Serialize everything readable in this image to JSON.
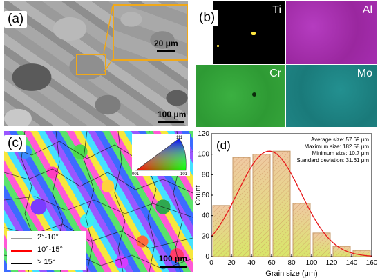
{
  "panels": {
    "a": {
      "label": "(a)",
      "inset_scale": "20 μm",
      "main_scale": "100 μm",
      "highlight_color": "#f0a818"
    },
    "b": {
      "label": "(b)",
      "maps": [
        {
          "element": "Ti",
          "color": "#000000",
          "dot_color": "#ffe640"
        },
        {
          "element": "Al",
          "color": "#a62bb0"
        },
        {
          "element": "Cr",
          "color": "#33a437"
        },
        {
          "element": "Mo",
          "color": "#1e8585"
        }
      ]
    },
    "c": {
      "label": "(c)",
      "legend": [
        {
          "text": "2°-10°",
          "color": "#9a9a9a"
        },
        {
          "text": "10°-15°",
          "color": "#ff0000"
        },
        {
          "text": "> 15°",
          "color": "#000000"
        }
      ],
      "ipf_labels": {
        "top": "111",
        "left": "001",
        "right": "101"
      },
      "scale": "100 μm"
    },
    "d": {
      "label": "(d)",
      "stats": [
        "Average size: 57.69 μm",
        "Maximum size: 182.58 μm",
        "Minimum size: 10.7 μm",
        "Standard deviation: 31.61 μm"
      ]
    }
  },
  "chart_data": {
    "type": "bar",
    "xlabel": "Grain size (μm)",
    "ylabel": "Count",
    "xlim": [
      0,
      160
    ],
    "ylim": [
      0,
      120
    ],
    "xticks": [
      0,
      20,
      40,
      60,
      80,
      100,
      120,
      140,
      160
    ],
    "yticks": [
      0,
      20,
      40,
      60,
      80,
      100,
      120
    ],
    "bins": [
      {
        "start": 0,
        "end": 20,
        "count": 50
      },
      {
        "start": 20,
        "end": 40,
        "count": 97
      },
      {
        "start": 40,
        "end": 60,
        "count": 100
      },
      {
        "start": 60,
        "end": 80,
        "count": 103
      },
      {
        "start": 80,
        "end": 100,
        "count": 52
      },
      {
        "start": 100,
        "end": 120,
        "count": 23
      },
      {
        "start": 120,
        "end": 140,
        "count": 10
      },
      {
        "start": 140,
        "end": 160,
        "count": 6
      }
    ],
    "fit": {
      "type": "normal",
      "mean": 57.69,
      "std": 31.61,
      "peak": 103,
      "color": "#e8191b"
    },
    "bar_edge_color": "#c49a6a",
    "bar_fill_top": "#f0c9a3",
    "bar_fill_bottom": "#d9e66b"
  }
}
